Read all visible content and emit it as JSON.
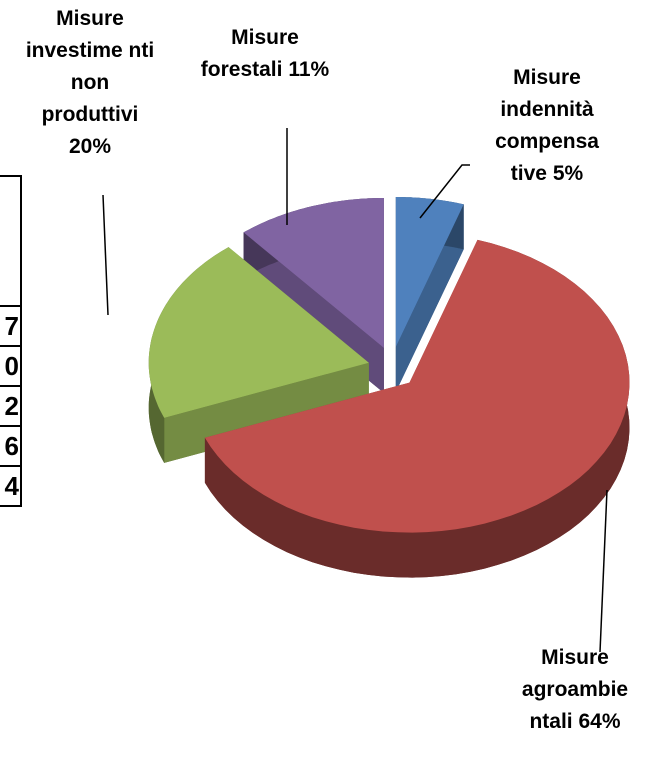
{
  "chart_data": {
    "type": "pie",
    "categories": [
      "Misure indennità compensa tive",
      "Misure agroambie ntali",
      "Misure investime nti non produttivi",
      "Misure forestali"
    ],
    "values": [
      5,
      64,
      20,
      11
    ],
    "value_labels": [
      "5%",
      "64%",
      "20%",
      "11%"
    ],
    "colors": [
      "#4f81bd",
      "#c0504d",
      "#9bbb59",
      "#8064a2"
    ],
    "exploded": true
  },
  "table": {
    "cells": [
      "7",
      "0",
      "2",
      "6",
      "4"
    ]
  }
}
